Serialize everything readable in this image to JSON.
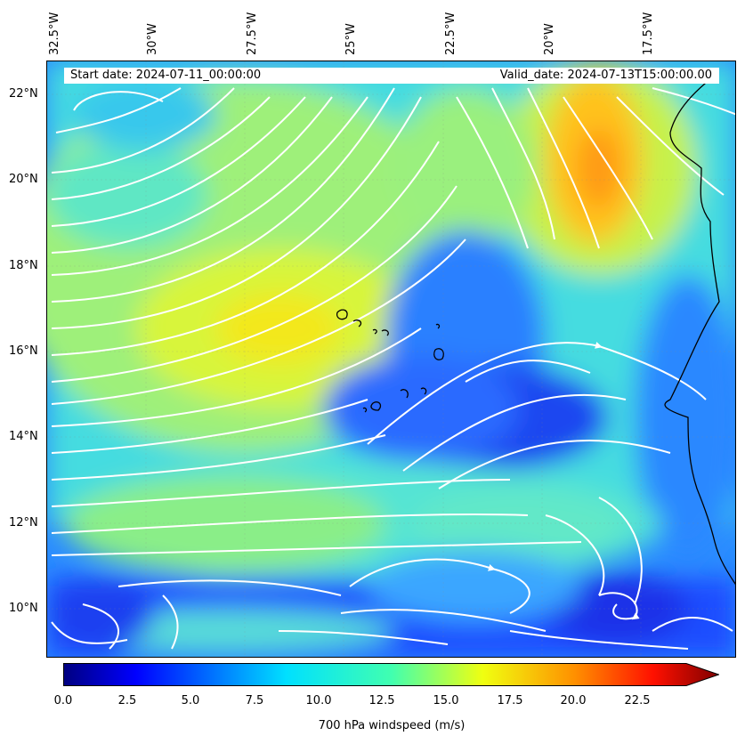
{
  "header": {
    "start_date": "Start date: 2024-07-11_00:00:00",
    "valid_date": "Valid_date: 2024-07-13T15:00:00.00"
  },
  "axes": {
    "lon_labels": [
      "32.5°W",
      "30°W",
      "27.5°W",
      "25°W",
      "22.5°W",
      "20°W",
      "17.5°W"
    ],
    "lat_labels": [
      "22°N",
      "20°N",
      "18°N",
      "16°N",
      "14°N",
      "12°N",
      "10°N"
    ]
  },
  "colorbar": {
    "label": "700 hPa windspeed (m/s)",
    "ticks": [
      "0.0",
      "2.5",
      "5.0",
      "7.5",
      "10.0",
      "12.5",
      "15.0",
      "17.5",
      "20.0",
      "22.5"
    ],
    "min": 0,
    "max": 25,
    "extend": "max",
    "colormap": "jet"
  },
  "colors": {
    "streamline": "#ffffff",
    "coastline": "#000000"
  }
}
